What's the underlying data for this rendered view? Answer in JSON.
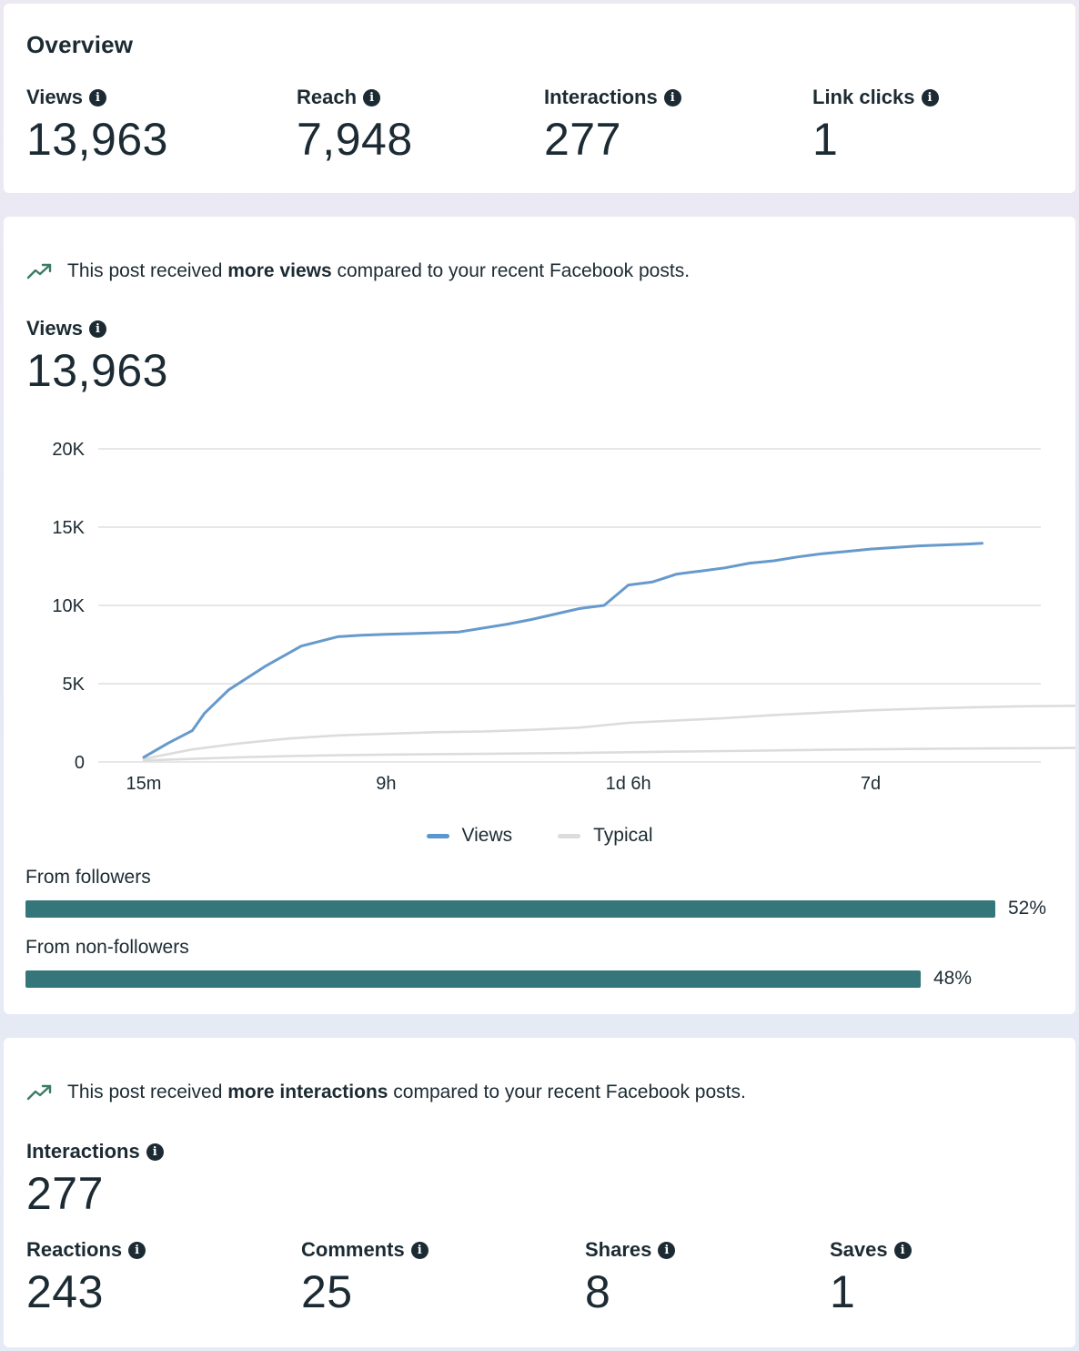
{
  "overview": {
    "title": "Overview",
    "metrics": [
      {
        "label": "Views",
        "value": "13,963"
      },
      {
        "label": "Reach",
        "value": "7,948"
      },
      {
        "label": "Interactions",
        "value": "277"
      },
      {
        "label": "Link clicks",
        "value": "1"
      }
    ]
  },
  "views_section": {
    "insight_prefix": "This post received ",
    "insight_bold": "more views",
    "insight_suffix": " compared to your recent Facebook posts.",
    "label": "Views",
    "value": "13,963",
    "legend": {
      "views": "Views",
      "typical": "Typical"
    },
    "audience": [
      {
        "label": "From followers",
        "percent_text": "52%",
        "fill": 0.52
      },
      {
        "label": "From non-followers",
        "percent_text": "48%",
        "fill": 0.48
      }
    ]
  },
  "interactions_section": {
    "insight_prefix": "This post received ",
    "insight_bold": "more interactions",
    "insight_suffix": " compared to your recent Facebook posts.",
    "label": "Interactions",
    "value": "277",
    "metrics": [
      {
        "label": "Reactions",
        "value": "243"
      },
      {
        "label": "Comments",
        "value": "25"
      },
      {
        "label": "Shares",
        "value": "8"
      },
      {
        "label": "Saves",
        "value": "1"
      }
    ]
  },
  "colors": {
    "views_line": "#6699cc",
    "typical_line": "#dcdcdc",
    "bar": "#35767a",
    "trend_icon": "#3b7a66"
  },
  "icons": {
    "info": "info-icon",
    "trend": "trending-up-icon"
  },
  "chart_data": {
    "type": "line",
    "ylim": [
      0,
      20000
    ],
    "yticks": [
      0,
      5000,
      10000,
      15000,
      20000
    ],
    "ytick_labels": [
      "0",
      "5K",
      "10K",
      "15K",
      "20K"
    ],
    "xtick_labels": [
      "15m",
      "9h",
      "1d 6h",
      "7d"
    ],
    "xlim": [
      0,
      19.5
    ],
    "xtick_positions": [
      0,
      5,
      10,
      15
    ],
    "grid": true,
    "legend_position": "bottom-center",
    "series": [
      {
        "name": "Views",
        "color": "#6699cc",
        "x": [
          0,
          0.5,
          1,
          1.25,
          1.75,
          2.5,
          3.25,
          4,
          4.5,
          5,
          5.5,
          6.5,
          7.5,
          8,
          9,
          9.5,
          10,
          10.5,
          11,
          11.5,
          12,
          12.5,
          13,
          13.5,
          14,
          14.5,
          15,
          15.5,
          16,
          17,
          17.3
        ],
        "values": [
          300,
          1200,
          2000,
          3100,
          4600,
          6100,
          7400,
          8000,
          8100,
          8150,
          8200,
          8300,
          8800,
          9100,
          9800,
          10000,
          11300,
          11500,
          12000,
          12200,
          12400,
          12700,
          12850,
          13100,
          13300,
          13450,
          13600,
          13700,
          13800,
          13920,
          13963
        ]
      },
      {
        "name": "Typical",
        "color": "#dcdcdc",
        "x": [
          0,
          1,
          2,
          3,
          4,
          5,
          6,
          7,
          8,
          9,
          10,
          11,
          12,
          13,
          14,
          15,
          16,
          17,
          18,
          19.5
        ],
        "values": [
          200,
          800,
          1200,
          1500,
          1700,
          1800,
          1900,
          1950,
          2050,
          2200,
          2500,
          2650,
          2800,
          3000,
          3150,
          3300,
          3400,
          3480,
          3550,
          3600
        ]
      },
      {
        "name": "Typical",
        "color": "#dcdcdc",
        "x": [
          0,
          1,
          2,
          3,
          4,
          5,
          6,
          7,
          8,
          9,
          10,
          11,
          12,
          13,
          14,
          15,
          16,
          17,
          18,
          19.5
        ],
        "values": [
          100,
          200,
          300,
          380,
          430,
          470,
          500,
          520,
          550,
          580,
          620,
          660,
          700,
          740,
          780,
          810,
          840,
          860,
          880,
          900
        ]
      }
    ]
  }
}
